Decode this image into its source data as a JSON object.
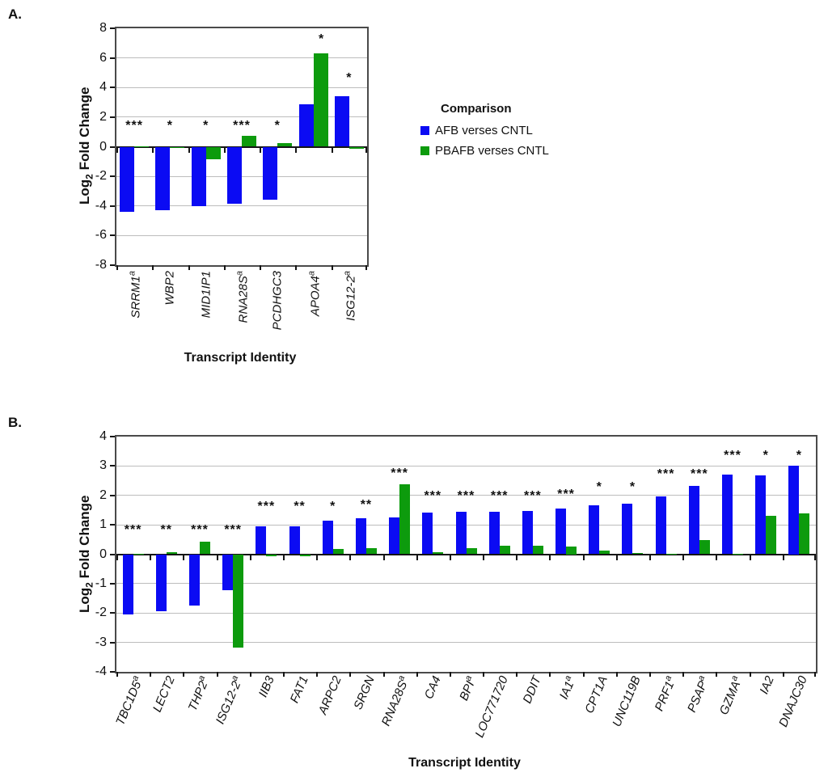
{
  "panels": [
    {
      "label": "A."
    },
    {
      "label": "B."
    }
  ],
  "legend": {
    "title": "Comparison",
    "items": [
      {
        "label": "AFB verses CNTL",
        "color": "#0b0bf3"
      },
      {
        "label": "PBAFB verses CNTL",
        "color": "#0d9b0d"
      }
    ]
  },
  "colors": {
    "afb_blue": "#0b0bf3",
    "pbafb_green": "#0d9b0d",
    "gridline": "#bdbdbd",
    "frame": "#4a4a4a",
    "axis": "#141414"
  },
  "chart_data": [
    {
      "type": "bar",
      "panel": "A",
      "title": "",
      "xlabel": "Transcript Identity",
      "ylabel": "Log2 Fold Change",
      "ylim": [
        -8,
        8
      ],
      "yticks": [
        8,
        6,
        4,
        2,
        0,
        -2,
        -4,
        -6,
        -8
      ],
      "grid": true,
      "legend_position": "right",
      "categories": [
        {
          "label": "SRRM1",
          "sup": "a"
        },
        {
          "label": "WBP2",
          "sup": ""
        },
        {
          "label": "MID1IP1",
          "sup": ""
        },
        {
          "label": "RNA28S",
          "sup": "a"
        },
        {
          "label": "PCDHGC3",
          "sup": ""
        },
        {
          "label": "APOA4",
          "sup": "a"
        },
        {
          "label": "ISG12-2",
          "sup": "a"
        }
      ],
      "series": [
        {
          "name": "AFB verses CNTL",
          "color": "#0b0bf3",
          "values": [
            -4.4,
            -4.31,
            -4.0,
            -3.84,
            -3.6,
            2.89,
            3.43
          ]
        },
        {
          "name": "PBAFB verses CNTL",
          "color": "#0d9b0d",
          "values": [
            0.05,
            -0.1,
            -0.85,
            0.73,
            0.27,
            6.33,
            -0.15
          ]
        }
      ],
      "significance": [
        {
          "text": "***",
          "y": 1.15,
          "xoff": 0
        },
        {
          "text": "*",
          "y": 1.15,
          "xoff": 0
        },
        {
          "text": "*",
          "y": 1.15,
          "xoff": 0
        },
        {
          "text": "***",
          "y": 1.15,
          "xoff": 0
        },
        {
          "text": "*",
          "y": 1.15,
          "xoff": 0
        },
        {
          "text": "*",
          "y": 7.0,
          "xoff": 10
        },
        {
          "text": "*",
          "y": 4.4,
          "xoff": 0
        }
      ]
    },
    {
      "type": "bar",
      "panel": "B",
      "title": "",
      "xlabel": "Transcript Identity",
      "ylabel": "Log2 Fold Change",
      "ylim": [
        -4,
        4
      ],
      "yticks": [
        4,
        3,
        2,
        1,
        0,
        -1,
        -2,
        -3,
        -4
      ],
      "grid": true,
      "categories": [
        {
          "label": "TBC1D5",
          "sup": "a"
        },
        {
          "label": "LECT2",
          "sup": ""
        },
        {
          "label": "THP2",
          "sup": "a"
        },
        {
          "label": "ISG12-2",
          "sup": "a"
        },
        {
          "label": "IIB3",
          "sup": ""
        },
        {
          "label": "FAT1",
          "sup": ""
        },
        {
          "label": "ARPC2",
          "sup": ""
        },
        {
          "label": "SRGN",
          "sup": ""
        },
        {
          "label": "RNA28S",
          "sup": "a"
        },
        {
          "label": "CA4",
          "sup": ""
        },
        {
          "label": "BPI",
          "sup": "a"
        },
        {
          "label": "LOC771720",
          "sup": ""
        },
        {
          "label": "DDIT",
          "sup": ""
        },
        {
          "label": "IA1",
          "sup": "a"
        },
        {
          "label": "CPT1A",
          "sup": ""
        },
        {
          "label": "UNC119B",
          "sup": ""
        },
        {
          "label": "PRF1",
          "sup": "a"
        },
        {
          "label": "PSAP",
          "sup": "a"
        },
        {
          "label": "GZMA",
          "sup": "a"
        },
        {
          "label": "IA2",
          "sup": ""
        },
        {
          "label": "DNAJC30",
          "sup": ""
        }
      ],
      "series": [
        {
          "name": "AFB verses CNTL",
          "color": "#0b0bf3",
          "values": [
            -2.05,
            -1.95,
            -1.74,
            -1.22,
            0.94,
            0.94,
            1.14,
            1.21,
            1.26,
            1.41,
            1.44,
            1.45,
            1.46,
            1.54,
            1.66,
            1.71,
            1.97,
            2.32,
            2.7,
            2.69,
            3.0
          ]
        },
        {
          "name": "PBAFB verses CNTL",
          "color": "#0d9b0d",
          "values": [
            0.02,
            0.06,
            0.42,
            -3.18,
            -0.06,
            -0.08,
            0.18,
            0.2,
            2.37,
            0.08,
            0.21,
            0.28,
            0.3,
            0.25,
            0.11,
            0.03,
            0.02,
            0.48,
            0.02,
            1.31,
            1.39
          ]
        }
      ],
      "significance": [
        {
          "text": "***",
          "y": 0.7,
          "xoff": 0
        },
        {
          "text": "**",
          "y": 0.7,
          "xoff": 0
        },
        {
          "text": "***",
          "y": 0.7,
          "xoff": 0
        },
        {
          "text": "***",
          "y": 0.7,
          "xoff": 0
        },
        {
          "text": "***",
          "y": 1.5,
          "xoff": 0
        },
        {
          "text": "**",
          "y": 1.5,
          "xoff": 0
        },
        {
          "text": "*",
          "y": 1.5,
          "xoff": 0
        },
        {
          "text": "**",
          "y": 1.55,
          "xoff": 0
        },
        {
          "text": "***",
          "y": 2.62,
          "xoff": 0
        },
        {
          "text": "***",
          "y": 1.85,
          "xoff": 0
        },
        {
          "text": "***",
          "y": 1.85,
          "xoff": 0
        },
        {
          "text": "***",
          "y": 1.85,
          "xoff": 0
        },
        {
          "text": "***",
          "y": 1.85,
          "xoff": 0
        },
        {
          "text": "***",
          "y": 1.9,
          "xoff": 0
        },
        {
          "text": "*",
          "y": 2.15,
          "xoff": 0
        },
        {
          "text": "*",
          "y": 2.17,
          "xoff": 0
        },
        {
          "text": "***",
          "y": 2.6,
          "xoff": 0
        },
        {
          "text": "***",
          "y": 2.6,
          "xoff": 0
        },
        {
          "text": "***",
          "y": 3.22,
          "xoff": 0
        },
        {
          "text": "*",
          "y": 3.22,
          "xoff": 0
        },
        {
          "text": "*",
          "y": 3.22,
          "xoff": 0
        }
      ]
    }
  ]
}
